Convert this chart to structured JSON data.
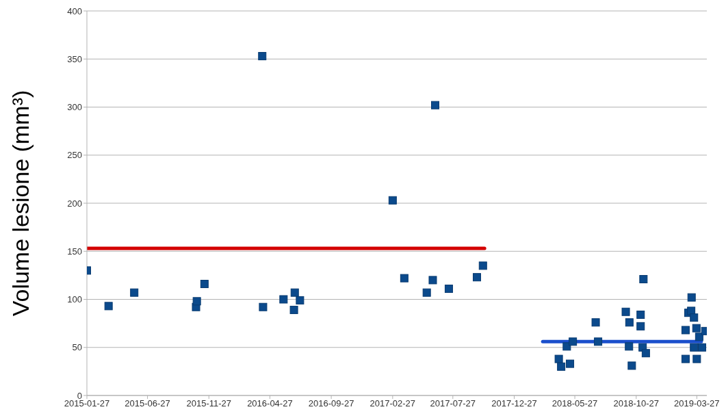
{
  "chart_data": {
    "type": "scatter",
    "ylabel": "Volume lesione (mm³)",
    "grid": "y",
    "xlim": [
      "2015-01-27",
      "2019-04-21"
    ],
    "xticks": [
      "2015-01-27",
      "2015-06-27",
      "2015-11-27",
      "2016-04-27",
      "2016-09-27",
      "2017-02-27",
      "2017-07-27",
      "2017-12-27",
      "2018-05-27",
      "2018-10-27",
      "2019-03-27"
    ],
    "ylim": [
      0,
      400
    ],
    "yticks": [
      0,
      50,
      100,
      150,
      200,
      250,
      300,
      350,
      400
    ],
    "series": [
      {
        "type": "line",
        "color": "#d40000",
        "x": [
          "2015-01-27",
          "2017-10-14"
        ],
        "values": [
          153,
          153
        ]
      },
      {
        "type": "line",
        "color": "#1a4fcc",
        "x": [
          "2018-03-08",
          "2019-04-07"
        ],
        "values": [
          56,
          56
        ]
      },
      {
        "marker": "square",
        "color": "#0b4a8c",
        "x": [
          "2015-01-27",
          "2015-03-22",
          "2015-05-25",
          "2015-10-26",
          "2015-10-28",
          "2015-11-16",
          "2016-04-08",
          "2016-04-10",
          "2016-05-31",
          "2016-06-26",
          "2016-06-28",
          "2016-07-11",
          "2017-02-27",
          "2017-03-28",
          "2017-05-23",
          "2017-06-07",
          "2017-06-13",
          "2017-07-17",
          "2017-09-25",
          "2017-10-10",
          "2018-04-17",
          "2018-04-23",
          "2018-05-07",
          "2018-05-15",
          "2018-05-22",
          "2018-07-18",
          "2018-07-24",
          "2018-10-01",
          "2018-10-09",
          "2018-10-10",
          "2018-10-16",
          "2018-11-07",
          "2018-11-07",
          "2018-11-12",
          "2018-11-14",
          "2018-11-20",
          "2019-02-27",
          "2019-02-27",
          "2019-03-06",
          "2019-03-13",
          "2019-03-14",
          "2019-03-20",
          "2019-03-20",
          "2019-03-26",
          "2019-03-27",
          "2019-04-02",
          "2019-04-09",
          "2019-04-17"
        ],
        "values": [
          130,
          93,
          107,
          92,
          98,
          116,
          353,
          92,
          100,
          89,
          107,
          99,
          203,
          122,
          107,
          120,
          302,
          111,
          123,
          135,
          38,
          30,
          51,
          33,
          56,
          76,
          56,
          87,
          51,
          76,
          31,
          84,
          72,
          50,
          121,
          44,
          68,
          38,
          86,
          88,
          102,
          81,
          50,
          70,
          38,
          61,
          50,
          67
        ]
      }
    ]
  }
}
